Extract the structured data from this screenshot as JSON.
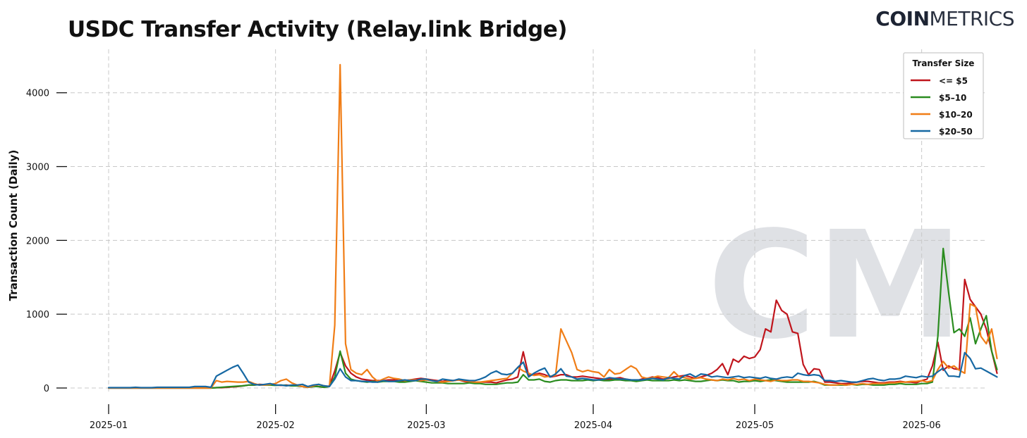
{
  "header": {
    "brand_bold": "COIN",
    "brand_light": "METRICS",
    "watermark": "CM"
  },
  "chart_data": {
    "type": "line",
    "title": "USDC Transfer Activity (Relay.link Bridge)",
    "xlabel": "",
    "ylabel": "Transaction Count (Daily)",
    "x_start": "2025-01-01",
    "x_end": "2025-06-11",
    "xlim": [
      "2025-01-01",
      "2025-06-11"
    ],
    "ylim": [
      0,
      4400
    ],
    "xticks": [
      "2025-01",
      "2025-02",
      "2025-03",
      "2025-04",
      "2025-05",
      "2025-06"
    ],
    "yticks": [
      0,
      1000,
      2000,
      3000,
      4000
    ],
    "grid": true,
    "legend": {
      "title": "Transfer Size",
      "placement": "top-right"
    },
    "series": [
      {
        "name": "<= $5",
        "color": "#c0151c",
        "values": [
          0,
          0,
          0,
          0,
          0,
          0,
          0,
          0,
          0,
          0,
          0,
          0,
          0,
          0,
          0,
          0,
          0,
          0,
          0,
          0,
          5,
          5,
          10,
          15,
          20,
          30,
          40,
          40,
          50,
          45,
          50,
          40,
          35,
          40,
          30,
          30,
          20,
          10,
          20,
          20,
          10,
          30,
          230,
          480,
          300,
          200,
          150,
          120,
          110,
          100,
          100,
          100,
          110,
          110,
          100,
          100,
          110,
          120,
          130,
          120,
          110,
          100,
          90,
          100,
          100,
          110,
          90,
          80,
          80,
          80,
          80,
          80,
          70,
          90,
          110,
          120,
          150,
          490,
          170,
          180,
          200,
          180,
          150,
          160,
          180,
          180,
          150,
          150,
          160,
          150,
          140,
          130,
          120,
          120,
          130,
          140,
          120,
          110,
          100,
          120,
          130,
          150,
          140,
          120,
          130,
          150,
          160,
          170,
          150,
          130,
          150,
          170,
          200,
          250,
          330,
          180,
          390,
          350,
          430,
          400,
          420,
          520,
          800,
          760,
          1190,
          1050,
          1000,
          760,
          740,
          320,
          180,
          260,
          250,
          80,
          80,
          70,
          60,
          60,
          70,
          80,
          90,
          90,
          80,
          70,
          70,
          80,
          80,
          90,
          80,
          80,
          70,
          100,
          120,
          300,
          620,
          240,
          300,
          260,
          250,
          1470,
          1200,
          1100,
          1000,
          800,
          500,
          200
        ]
      },
      {
        "name": "$5–10",
        "color": "#2a8c1f",
        "values": [
          0,
          0,
          0,
          0,
          0,
          0,
          0,
          0,
          0,
          0,
          0,
          0,
          0,
          0,
          0,
          0,
          0,
          0,
          0,
          0,
          5,
          10,
          15,
          20,
          25,
          30,
          40,
          40,
          45,
          40,
          40,
          35,
          40,
          35,
          30,
          30,
          20,
          10,
          20,
          20,
          10,
          20,
          150,
          500,
          200,
          120,
          100,
          90,
          80,
          90,
          80,
          90,
          90,
          90,
          80,
          80,
          90,
          100,
          90,
          80,
          70,
          70,
          70,
          60,
          60,
          60,
          60,
          70,
          60,
          60,
          50,
          50,
          50,
          60,
          70,
          70,
          80,
          180,
          110,
          110,
          120,
          90,
          80,
          100,
          110,
          110,
          100,
          100,
          100,
          110,
          100,
          110,
          100,
          100,
          110,
          110,
          100,
          100,
          90,
          100,
          110,
          100,
          100,
          100,
          100,
          110,
          100,
          110,
          100,
          90,
          90,
          100,
          110,
          100,
          110,
          100,
          100,
          80,
          90,
          90,
          100,
          90,
          100,
          110,
          100,
          90,
          80,
          80,
          80,
          80,
          80,
          90,
          70,
          40,
          40,
          40,
          40,
          40,
          50,
          40,
          50,
          50,
          40,
          40,
          40,
          50,
          50,
          60,
          50,
          50,
          50,
          60,
          60,
          80,
          700,
          1890,
          1300,
          750,
          800,
          700,
          950,
          600,
          800,
          980,
          500,
          250
        ]
      },
      {
        "name": "$10–20",
        "color": "#f07d16",
        "values": [
          0,
          0,
          0,
          0,
          0,
          0,
          0,
          0,
          0,
          0,
          0,
          0,
          0,
          0,
          0,
          0,
          0,
          0,
          0,
          0,
          100,
          80,
          90,
          85,
          80,
          80,
          90,
          60,
          40,
          40,
          50,
          60,
          100,
          120,
          70,
          40,
          20,
          10,
          30,
          50,
          30,
          20,
          850,
          4380,
          600,
          250,
          200,
          180,
          250,
          150,
          90,
          120,
          150,
          130,
          120,
          100,
          110,
          110,
          100,
          110,
          100,
          90,
          80,
          90,
          100,
          110,
          100,
          90,
          80,
          80,
          90,
          100,
          110,
          120,
          130,
          200,
          280,
          230,
          200,
          170,
          180,
          150,
          160,
          170,
          800,
          640,
          480,
          250,
          220,
          240,
          220,
          210,
          150,
          250,
          190,
          200,
          250,
          300,
          260,
          150,
          130,
          140,
          160,
          150,
          140,
          220,
          150,
          140,
          120,
          130,
          140,
          120,
          110,
          100,
          120,
          110,
          130,
          110,
          120,
          100,
          120,
          110,
          100,
          90,
          110,
          100,
          100,
          110,
          110,
          90,
          90,
          80,
          70,
          50,
          40,
          40,
          50,
          40,
          50,
          50,
          60,
          50,
          60,
          60,
          60,
          70,
          70,
          80,
          80,
          90,
          90,
          100,
          80,
          100,
          250,
          360,
          270,
          300,
          240,
          200,
          1140,
          1100,
          700,
          600,
          800,
          400
        ]
      },
      {
        "name": "$20–50",
        "color": "#1668a3",
        "values": [
          5,
          5,
          5,
          5,
          5,
          10,
          5,
          5,
          5,
          10,
          10,
          10,
          10,
          10,
          10,
          10,
          20,
          20,
          20,
          10,
          160,
          200,
          240,
          280,
          310,
          200,
          80,
          50,
          40,
          50,
          60,
          40,
          40,
          30,
          40,
          40,
          50,
          20,
          40,
          50,
          30,
          20,
          120,
          260,
          150,
          100,
          100,
          90,
          90,
          80,
          80,
          100,
          90,
          90,
          100,
          110,
          100,
          100,
          120,
          120,
          100,
          90,
          120,
          110,
          100,
          120,
          110,
          100,
          100,
          120,
          150,
          200,
          230,
          190,
          180,
          200,
          280,
          350,
          150,
          200,
          240,
          270,
          150,
          190,
          260,
          160,
          150,
          120,
          130,
          120,
          110,
          110,
          120,
          140,
          130,
          120,
          120,
          110,
          110,
          110,
          120,
          130,
          120,
          110,
          140,
          130,
          120,
          170,
          190,
          150,
          190,
          180,
          150,
          160,
          150,
          140,
          150,
          160,
          140,
          150,
          140,
          130,
          150,
          130,
          120,
          140,
          150,
          140,
          200,
          180,
          170,
          180,
          170,
          100,
          100,
          90,
          100,
          90,
          80,
          80,
          100,
          120,
          130,
          110,
          100,
          120,
          120,
          130,
          160,
          150,
          140,
          160,
          150,
          160,
          220,
          270,
          160,
          160,
          150,
          480,
          400,
          260,
          270,
          230,
          190,
          150
        ]
      }
    ]
  }
}
